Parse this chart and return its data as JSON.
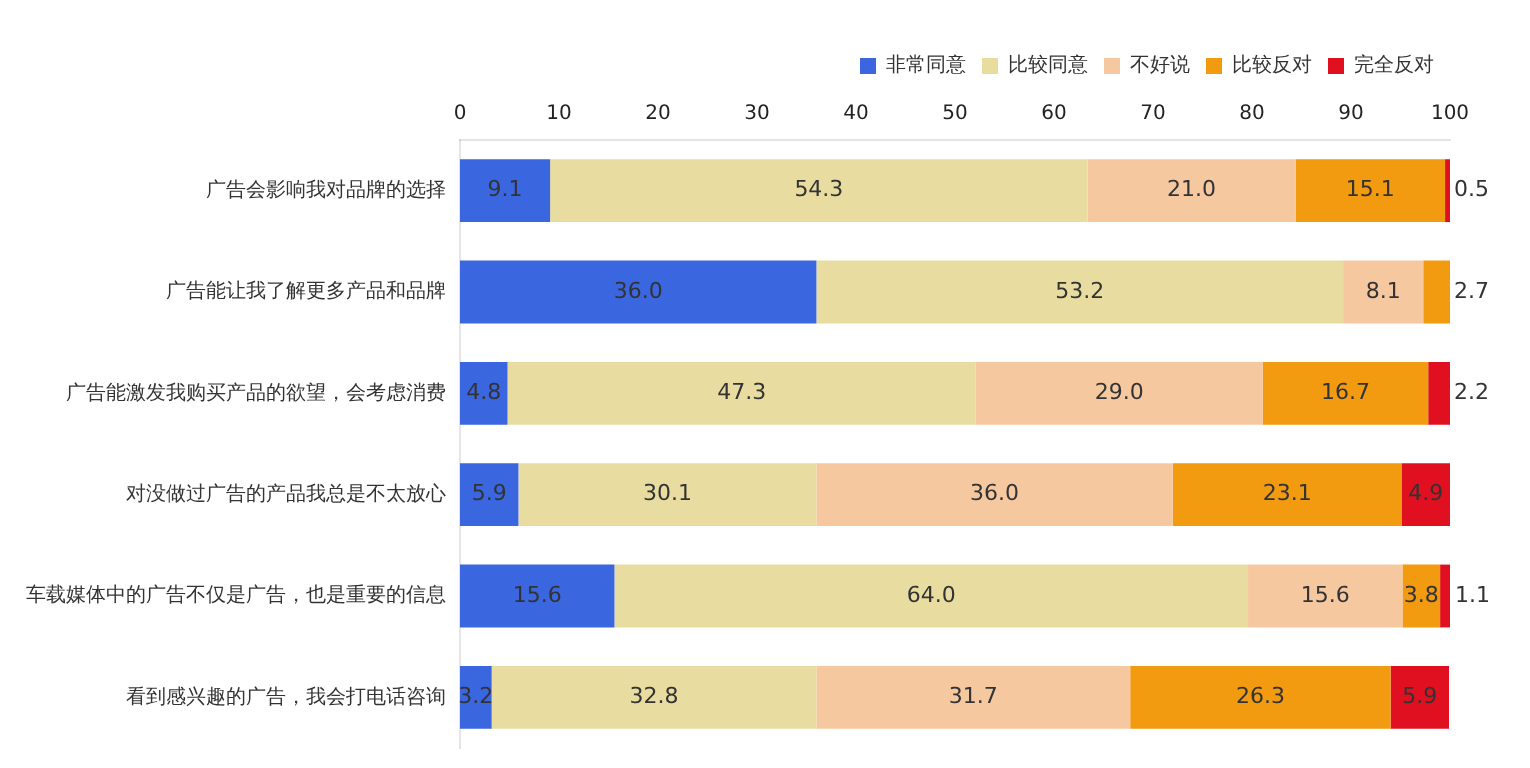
{
  "chart_data": {
    "type": "bar",
    "orientation": "horizontal",
    "stacked": true,
    "legend": "top",
    "grid": false,
    "categories": [
      "广告会影响我对品牌的选择",
      "广告能让我了解更多产品和品牌",
      "广告能激发我购买产品的欲望，会考虑消费",
      "对没做过广告的产品我总是不太放心",
      "车载媒体中的广告不仅是广告，也是重要的信息",
      "看到感兴趣的广告，我会打电话咨询"
    ],
    "xlim": [
      0,
      100
    ],
    "xticks": [
      0,
      10,
      20,
      30,
      40,
      50,
      60,
      70,
      80,
      90,
      100
    ],
    "series": [
      {
        "name": "非常同意",
        "color": "#3a66e0",
        "values": [
          9.1,
          36.0,
          4.8,
          5.9,
          15.6,
          3.2
        ],
        "value_labels": [
          "9.1",
          "36.0",
          "4.8",
          "5.9",
          "15.6",
          "3.2"
        ]
      },
      {
        "name": "比较同意",
        "color": "#e8dca0",
        "values": [
          54.3,
          53.2,
          47.3,
          30.1,
          64.0,
          32.8
        ],
        "value_labels": [
          "54.3",
          "53.2",
          "47.3",
          "30.1",
          "64.0",
          "32.8"
        ]
      },
      {
        "name": "不好说",
        "color": "#f6c8a0",
        "values": [
          21.0,
          8.1,
          29.0,
          36.0,
          15.6,
          31.7
        ],
        "value_labels": [
          "21.0",
          "8.1",
          "29.0",
          "36.0",
          "15.6",
          "31.7"
        ]
      },
      {
        "name": "比较反对",
        "color": "#f29a10",
        "values": [
          15.1,
          2.7,
          16.7,
          23.1,
          3.8,
          26.3
        ],
        "value_labels": [
          "15.1",
          "2.7",
          "16.7",
          "23.1",
          "3.8",
          "26.3"
        ]
      },
      {
        "name": "完全反对",
        "color": "#e01020",
        "values": [
          0.5,
          null,
          2.2,
          4.9,
          1.1,
          5.9
        ],
        "value_labels": [
          "0.5",
          null,
          "2.2",
          "4.9",
          "1.1",
          "5.9"
        ]
      }
    ]
  }
}
